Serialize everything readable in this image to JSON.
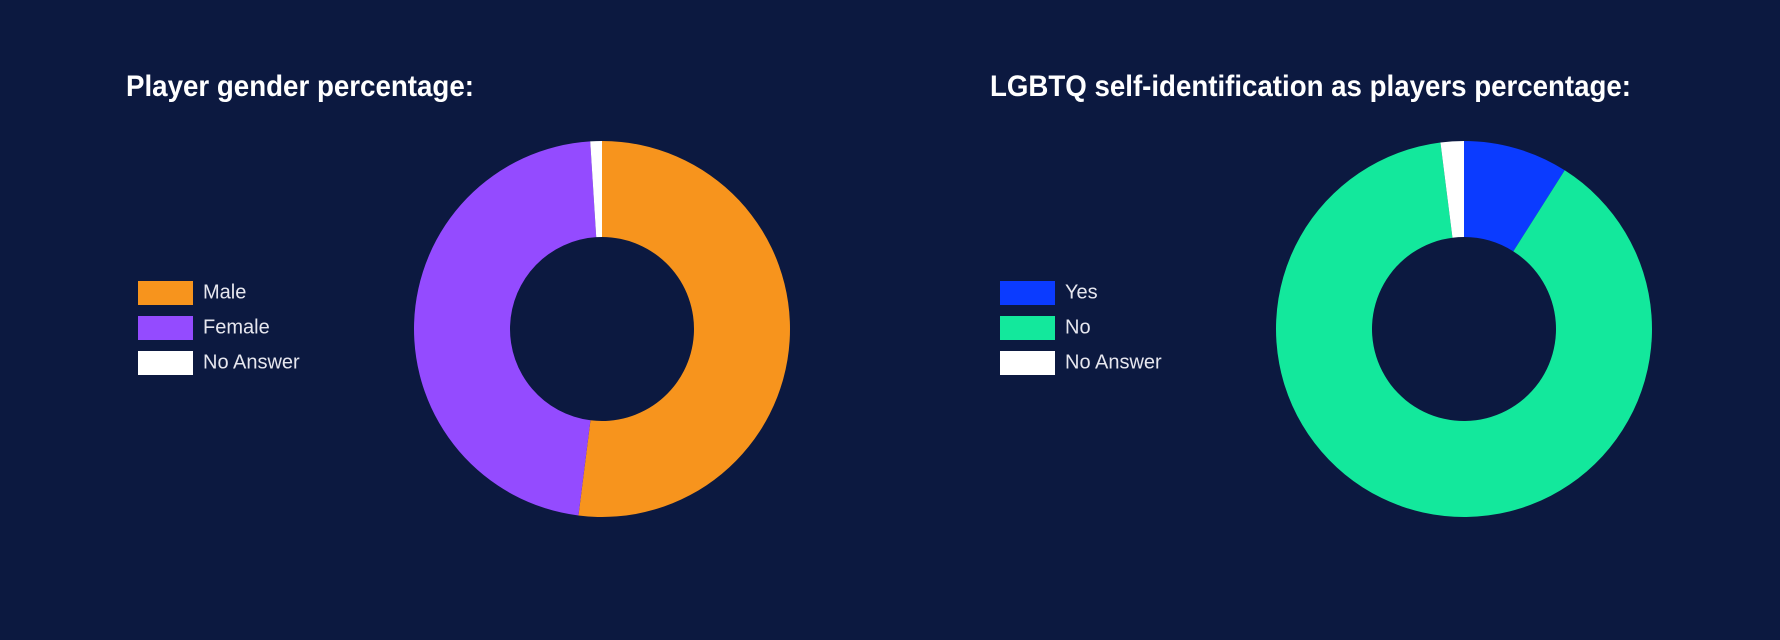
{
  "chart_data": [
    {
      "type": "donut",
      "title": "Player gender percentage:",
      "categories": [
        "Male",
        "Female",
        "No Answer"
      ],
      "values": [
        52,
        47,
        1
      ],
      "colors": [
        "#f7941d",
        "#944bff",
        "#ffffff"
      ]
    },
    {
      "type": "donut",
      "title": "LGBTQ self-identification as players percentage:",
      "categories": [
        "Yes",
        "No",
        "No Answer"
      ],
      "values": [
        9,
        89,
        2
      ],
      "colors": [
        "#0b3bff",
        "#13e89c",
        "#ffffff"
      ]
    }
  ]
}
